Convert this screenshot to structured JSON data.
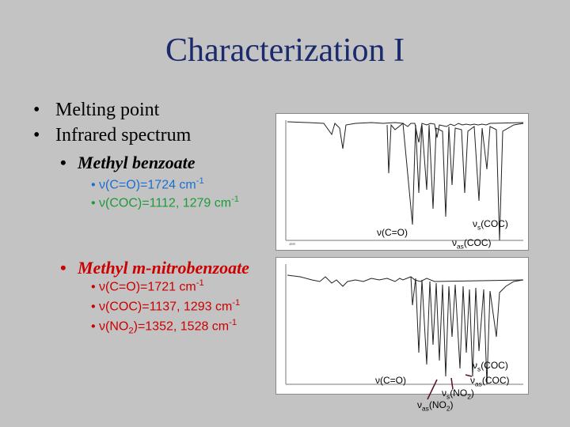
{
  "title": "Characterization I",
  "bullets": [
    "Melting point",
    "Infrared spectrum"
  ],
  "compounds": [
    {
      "name": "Methyl benzoate",
      "color": "#000000",
      "lines": [
        {
          "color": "#1a6fd1",
          "a": "ν(C=O)=1724 cm",
          "sup": "-1",
          "b": ""
        },
        {
          "color": "#1e9a3a",
          "a": "ν(COC)=1112, 1279 cm",
          "sup": "-1",
          "b": ""
        }
      ]
    },
    {
      "name": "Methyl m-nitrobenzoate",
      "color": "#cc0000",
      "lines": [
        {
          "color": "#cc0000",
          "a": "ν(C=O)=1721 cm",
          "sup": "-1"
        },
        {
          "color": "#cc0000",
          "a": "ν(COC)=1137, 1293 cm",
          "sup": "-1"
        },
        {
          "color": "#cc0000",
          "a": "ν(NO",
          "sub": "2",
          "b": ")=1352, 1528 cm",
          "sup": "-1"
        }
      ]
    }
  ],
  "spectrum1": {
    "labels": {
      "co": "ν(C=O)",
      "s_nu": "ν",
      "s_sub": "s",
      "s_rest": "(COC)",
      "as_nu": "ν",
      "as_sub": "as",
      "as_rest": "(COC)"
    }
  },
  "spectrum2": {
    "labels": {
      "co": "ν(C=O)",
      "s_nu": "ν",
      "s_sub": "s",
      "s_rest": "(COC)",
      "as_nu": "ν",
      "as_sub": "as",
      "as_rest": "(COC)",
      "sno2_nu": "ν",
      "sno2_sub": "s",
      "sno2_rest": "(NO",
      "sno2_sub2": "2",
      "sno2_end": ")",
      "asno2_nu": "ν",
      "asno2_sub": "as",
      "asno2_rest": "(NO",
      "asno2_sub2": "2",
      "asno2_end": ")"
    }
  }
}
